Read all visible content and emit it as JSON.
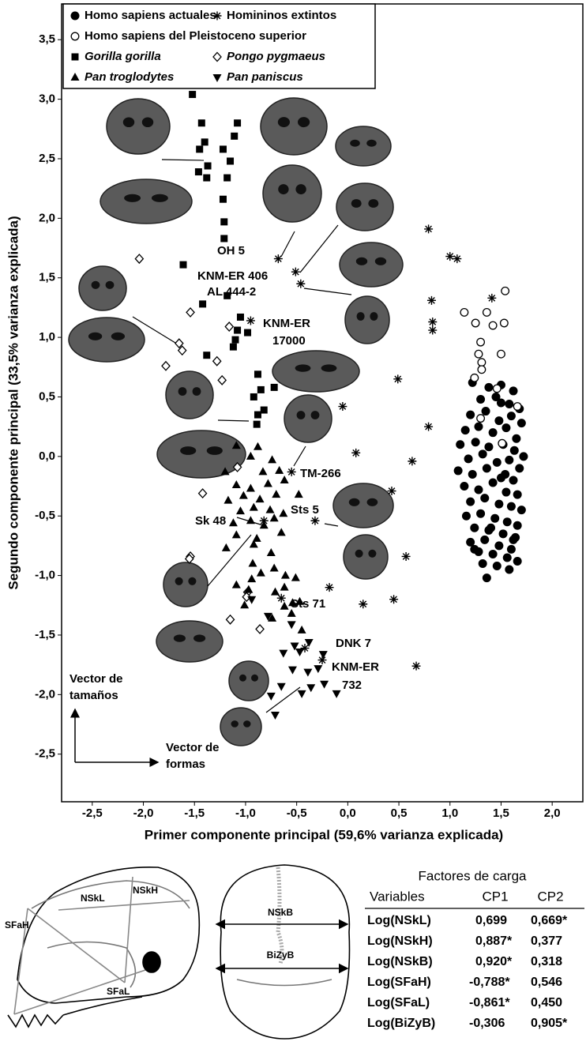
{
  "chart_data": {
    "type": "scatter",
    "x_label": "Primer componente principal (59,6% varianza explicada)",
    "y_label": "Segundo componente principal (33,5% varianza explicada)",
    "xlim": [
      -2.8,
      2.3
    ],
    "ylim": [
      -2.9,
      3.8
    ],
    "xticks": [
      {
        "value": -2.5,
        "label": "-2,5"
      },
      {
        "value": -2,
        "label": "-2,0"
      },
      {
        "value": -1.5,
        "label": "-1,5"
      },
      {
        "value": -1,
        "label": "-1,0"
      },
      {
        "value": -0.5,
        "label": "-0,5"
      },
      {
        "value": 0,
        "label": "0,0"
      },
      {
        "value": 0.5,
        "label": "0,5"
      },
      {
        "value": 1,
        "label": "1,0"
      },
      {
        "value": 1.5,
        "label": "1,5"
      },
      {
        "value": 2,
        "label": "2,0"
      }
    ],
    "yticks": [
      {
        "value": -2.5,
        "label": "-2,5"
      },
      {
        "value": -2,
        "label": "-2,0"
      },
      {
        "value": -1.5,
        "label": "-1,5"
      },
      {
        "value": -1,
        "label": "-1,0"
      },
      {
        "value": -0.5,
        "label": "-0,5"
      },
      {
        "value": 0,
        "label": "0,0"
      },
      {
        "value": 0.5,
        "label": "0,5"
      },
      {
        "value": 1,
        "label": "1,0"
      },
      {
        "value": 1.5,
        "label": "1,5"
      },
      {
        "value": 2,
        "label": "2,0"
      },
      {
        "value": 2.5,
        "label": "2,5"
      },
      {
        "value": 3,
        "label": "3,0"
      },
      {
        "value": 3.5,
        "label": "3,5"
      }
    ],
    "legend": "upper left",
    "series": [
      {
        "name": "Homo sapiens actuales",
        "color": "#000000",
        "marker": "circle",
        "x": [
          1.22,
          1.38,
          1.5,
          1.62,
          1.3,
          1.45,
          1.58,
          1.68,
          1.2,
          1.35,
          1.48,
          1.6,
          1.7,
          1.15,
          1.28,
          1.42,
          1.55,
          1.65,
          1.1,
          1.25,
          1.38,
          1.52,
          1.63,
          1.72,
          1.18,
          1.32,
          1.46,
          1.58,
          1.68,
          1.08,
          1.22,
          1.36,
          1.5,
          1.62,
          1.14,
          1.28,
          1.42,
          1.55,
          1.66,
          1.2,
          1.34,
          1.48,
          1.6,
          1.7,
          1.16,
          1.3,
          1.44,
          1.56,
          1.66,
          1.24,
          1.38,
          1.52,
          1.64,
          1.2,
          1.34,
          1.48,
          1.6,
          1.28,
          1.42,
          1.56,
          1.66,
          1.32,
          1.46,
          1.58,
          1.24,
          1.4,
          1.54,
          1.5,
          1.62,
          1.36
        ],
        "y": [
          0.62,
          0.58,
          0.6,
          0.55,
          0.48,
          0.5,
          0.44,
          0.4,
          0.35,
          0.38,
          0.3,
          0.34,
          0.28,
          0.22,
          0.25,
          0.2,
          0.24,
          0.15,
          0.1,
          0.12,
          0.08,
          0.1,
          0.05,
          0.0,
          -0.02,
          0.02,
          -0.05,
          -0.03,
          -0.1,
          -0.12,
          -0.15,
          -0.1,
          -0.18,
          -0.2,
          -0.25,
          -0.28,
          -0.22,
          -0.3,
          -0.32,
          -0.38,
          -0.35,
          -0.4,
          -0.42,
          -0.45,
          -0.5,
          -0.48,
          -0.52,
          -0.55,
          -0.58,
          -0.6,
          -0.62,
          -0.65,
          -0.68,
          -0.72,
          -0.7,
          -0.75,
          -0.78,
          -0.8,
          -0.82,
          -0.85,
          -0.88,
          -0.9,
          -0.92,
          -0.95,
          -0.78,
          -0.6,
          -0.15,
          0.45,
          -0.7,
          -1.02
        ]
      },
      {
        "name": "Homininos extintos",
        "color": "#000000",
        "marker": "asterisk",
        "x": [
          -0.68,
          -0.51,
          -0.46,
          -0.95,
          0.79,
          1.0,
          1.07,
          1.41,
          0.82,
          0.83,
          0.83,
          0.49,
          -0.05,
          0.79,
          0.08,
          0.63,
          -0.55,
          0.43,
          -0.32,
          -0.82,
          0.57,
          -0.18,
          0.15,
          0.45,
          -0.42,
          -0.25,
          0.67,
          -0.65
        ],
        "y": [
          1.66,
          1.55,
          1.45,
          1.14,
          1.91,
          1.68,
          1.66,
          1.33,
          1.31,
          1.13,
          1.06,
          0.65,
          0.42,
          0.25,
          0.03,
          -0.04,
          -0.13,
          -0.29,
          -0.54,
          -0.54,
          -0.84,
          -1.1,
          -1.24,
          -1.2,
          -1.61,
          -1.71,
          -1.76,
          -1.19
        ]
      },
      {
        "name": "Homo sapiens del Pleistoceno superior",
        "color": "#000000",
        "marker": "open-circle",
        "x": [
          1.54,
          1.36,
          1.25,
          1.42,
          1.53,
          1.14,
          1.3,
          1.28,
          1.31,
          1.5,
          1.24,
          1.46,
          1.66,
          1.31,
          1.3,
          1.51
        ],
        "y": [
          1.39,
          1.21,
          1.12,
          1.1,
          1.12,
          1.21,
          0.96,
          0.86,
          0.79,
          0.86,
          0.66,
          0.57,
          0.42,
          0.73,
          0.32,
          0.11
        ]
      },
      {
        "name": "Gorilla gorilla",
        "color": "#000000",
        "marker": "square",
        "x": [
          -1.52,
          -1.43,
          -1.4,
          -1.08,
          -1.11,
          -1.22,
          -1.45,
          -1.37,
          -1.46,
          -1.38,
          -1.15,
          -1.18,
          -1.22,
          -1.21,
          -1.21,
          -1.61,
          -1.18,
          -1.42,
          -1.05,
          -1.08,
          -0.98,
          -1.1,
          -1.12,
          -1.38,
          -0.88,
          -0.85,
          -0.72,
          -0.92,
          -0.82,
          -0.88,
          -0.89
        ],
        "y": [
          3.04,
          2.8,
          2.64,
          2.8,
          2.69,
          2.58,
          2.58,
          2.44,
          2.39,
          2.34,
          2.48,
          2.34,
          2.16,
          1.97,
          1.83,
          1.61,
          1.35,
          1.28,
          1.17,
          1.06,
          1.04,
          0.98,
          0.92,
          0.85,
          0.69,
          0.56,
          0.58,
          0.5,
          0.39,
          0.35,
          0.27
        ]
      },
      {
        "name": "Pongo pygmaeus",
        "color": "#000000",
        "marker": "diamond",
        "x": [
          -2.04,
          -1.54,
          -1.65,
          -1.62,
          -1.78,
          -1.28,
          -1.23,
          -1.16,
          -1.08,
          -1.42,
          -1.54,
          -1.55,
          -0.98,
          -0.99,
          -0.86,
          -1.15
        ],
        "y": [
          1.66,
          1.21,
          0.95,
          0.89,
          0.76,
          0.8,
          0.64,
          1.09,
          -0.09,
          -0.31,
          -0.84,
          -0.86,
          -1.14,
          -1.18,
          -1.45,
          -1.37
        ]
      },
      {
        "name": "Pan troglodytes",
        "color": "#000000",
        "marker": "triangle-up",
        "x": [
          -1.09,
          -0.95,
          -0.88,
          -0.74,
          -1.2,
          -0.83,
          -0.67,
          -1.09,
          -0.95,
          -0.78,
          -0.62,
          -1.17,
          -1.02,
          -0.86,
          -0.7,
          -0.48,
          -1.05,
          -0.92,
          -0.76,
          -0.63,
          -1.12,
          -0.95,
          -0.82,
          -0.72,
          -1.09,
          -0.89,
          -0.65,
          -1.19,
          -0.92,
          -0.93,
          -0.75,
          -0.94,
          -0.85,
          -0.72,
          -0.61,
          -0.51,
          -1.09,
          -0.97,
          -0.71,
          -0.62,
          -1.01,
          -0.62,
          -0.54,
          -0.47,
          -0.74,
          -0.55,
          -0.45
        ],
        "y": [
          0.09,
          0.0,
          0.08,
          -0.03,
          -0.13,
          -0.13,
          -0.12,
          -0.24,
          -0.27,
          -0.23,
          -0.2,
          -0.37,
          -0.33,
          -0.36,
          -0.32,
          -0.32,
          -0.46,
          -0.43,
          -0.45,
          -0.48,
          -0.56,
          -0.54,
          -0.58,
          -0.52,
          -0.66,
          -0.69,
          -0.64,
          -0.77,
          -0.74,
          -0.9,
          -0.81,
          -1.03,
          -0.98,
          -0.94,
          -1.0,
          -1.02,
          -1.08,
          -1.12,
          -1.14,
          -1.1,
          -1.25,
          -1.26,
          -1.23,
          -1.22,
          -1.36,
          -1.32,
          -1.46
        ]
      },
      {
        "name": "Pan paniscus",
        "color": "#000000",
        "marker": "triangle-down",
        "x": [
          -0.55,
          -0.52,
          -0.38,
          -0.47,
          -0.24,
          -0.63,
          -0.54,
          -0.39,
          -0.29,
          -0.65,
          -0.36,
          -0.23,
          -0.75,
          -0.45,
          -0.71,
          -0.11,
          -0.94,
          -0.78
        ],
        "y": [
          -1.41,
          -1.59,
          -1.56,
          -1.64,
          -1.66,
          -1.65,
          -1.79,
          -1.81,
          -1.78,
          -1.93,
          -1.94,
          -1.91,
          -2.01,
          -1.99,
          -2.17,
          -1.99,
          -1.2,
          -1.34
        ]
      }
    ],
    "annotations": [
      "OH 5",
      "KNM-ER 406",
      "AL 444-2",
      "KNM-ER",
      "17000",
      "TM-266",
      "Sk 48",
      "Sts 5",
      "Sts 71",
      "DNK 7",
      "KNM-ER",
      "732"
    ],
    "size_vector": [
      "Vector de",
      "tamaños"
    ],
    "shape_vector": [
      "Vector de",
      "formas"
    ]
  },
  "diagram": {
    "lateral_labels": [
      "NSkL",
      "NSkH",
      "SFaH",
      "SFaL"
    ],
    "frontal_labels": [
      "NSkB",
      "BiZyB"
    ]
  },
  "table": {
    "title": "Factores de carga",
    "header": [
      "Variables",
      "CP1",
      "CP2"
    ],
    "rows": [
      [
        "Log(NSkL)",
        "0,699",
        "0,669*"
      ],
      [
        "Log(NSkH)",
        "0,887*",
        "0,377"
      ],
      [
        "Log(NSkB)",
        "0,920*",
        "0,318"
      ],
      [
        "Log(SFaH)",
        "-0,788*",
        "0,546"
      ],
      [
        "Log(SFaL)",
        "-0,861*",
        "0,450"
      ],
      [
        "Log(BiZyB)",
        "-0,306",
        "0,905*"
      ]
    ]
  }
}
